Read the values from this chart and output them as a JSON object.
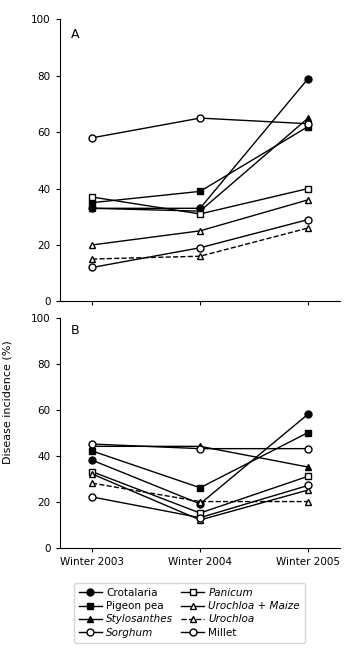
{
  "xticklabels": [
    "Winter 2003",
    "Winter 2004",
    "Winter 2005"
  ],
  "x": [
    0,
    1,
    2
  ],
  "ylabel": "Disease incidence (%)",
  "ylim": [
    0,
    100
  ],
  "yticks": [
    0,
    20,
    40,
    60,
    80,
    100
  ],
  "panel_A": {
    "label": "A",
    "series": [
      {
        "name": "Crotalaria",
        "values": [
          33,
          33,
          79
        ],
        "marker": "o",
        "filled": true,
        "linestyle": "-"
      },
      {
        "name": "Pigeon pea",
        "values": [
          35,
          39,
          62
        ],
        "marker": "s",
        "filled": true,
        "linestyle": "-"
      },
      {
        "name": "Stylosanthes",
        "values": [
          33,
          32,
          65
        ],
        "marker": "^",
        "filled": true,
        "linestyle": "-"
      },
      {
        "name": "Sorghum",
        "values": [
          58,
          65,
          63
        ],
        "marker": "o",
        "filled": false,
        "linestyle": "-"
      },
      {
        "name": "Panicum",
        "values": [
          37,
          31,
          40
        ],
        "marker": "s",
        "filled": false,
        "linestyle": "-"
      },
      {
        "name": "Urochloa + Maize",
        "values": [
          20,
          25,
          36
        ],
        "marker": "^",
        "filled": false,
        "linestyle": "-"
      },
      {
        "name": "Urochloa",
        "values": [
          15,
          16,
          26
        ],
        "marker": "^",
        "filled": false,
        "linestyle": "--"
      },
      {
        "name": "Millet",
        "values": [
          12,
          19,
          29
        ],
        "marker": "o",
        "filled": false,
        "linestyle": "-"
      }
    ]
  },
  "panel_B": {
    "label": "B",
    "series": [
      {
        "name": "Crotalaria",
        "values": [
          38,
          19,
          58
        ],
        "marker": "o",
        "filled": true,
        "linestyle": "-"
      },
      {
        "name": "Pigeon pea",
        "values": [
          42,
          26,
          50
        ],
        "marker": "s",
        "filled": true,
        "linestyle": "-"
      },
      {
        "name": "Stylosanthes",
        "values": [
          44,
          44,
          35
        ],
        "marker": "^",
        "filled": true,
        "linestyle": "-"
      },
      {
        "name": "Sorghum",
        "values": [
          45,
          43,
          43
        ],
        "marker": "o",
        "filled": false,
        "linestyle": "-"
      },
      {
        "name": "Panicum",
        "values": [
          33,
          15,
          31
        ],
        "marker": "s",
        "filled": false,
        "linestyle": "-"
      },
      {
        "name": "Urochloa + Maize",
        "values": [
          32,
          12,
          25
        ],
        "marker": "^",
        "filled": false,
        "linestyle": "-"
      },
      {
        "name": "Urochloa",
        "values": [
          28,
          20,
          20
        ],
        "marker": "^",
        "filled": false,
        "linestyle": "--"
      },
      {
        "name": "Millet",
        "values": [
          22,
          13,
          27
        ],
        "marker": "o",
        "filled": false,
        "linestyle": "-"
      }
    ]
  },
  "legend": [
    {
      "label": "Crotalaria",
      "marker": "o",
      "filled": true,
      "linestyle": "-",
      "italic": false
    },
    {
      "label": "Pigeon pea",
      "marker": "s",
      "filled": true,
      "linestyle": "-",
      "italic": false
    },
    {
      "label": "Stylosanthes",
      "marker": "^",
      "filled": true,
      "linestyle": "-",
      "italic": true
    },
    {
      "label": "Sorghum",
      "marker": "o",
      "filled": false,
      "linestyle": "-",
      "italic": true
    },
    {
      "label": "Panicum",
      "marker": "s",
      "filled": false,
      "linestyle": "-",
      "italic": true
    },
    {
      "label": "Urochloa + Maize",
      "marker": "^",
      "filled": false,
      "linestyle": "-",
      "italic": true
    },
    {
      "label": "Urochloa",
      "marker": "^",
      "filled": false,
      "linestyle": "--",
      "italic": true
    },
    {
      "label": "Millet",
      "marker": "o",
      "filled": false,
      "linestyle": "-",
      "italic": false
    }
  ],
  "color": "black",
  "markersize": 5,
  "linewidth": 1.0,
  "fig_width": 3.51,
  "fig_height": 6.48,
  "dpi": 100
}
